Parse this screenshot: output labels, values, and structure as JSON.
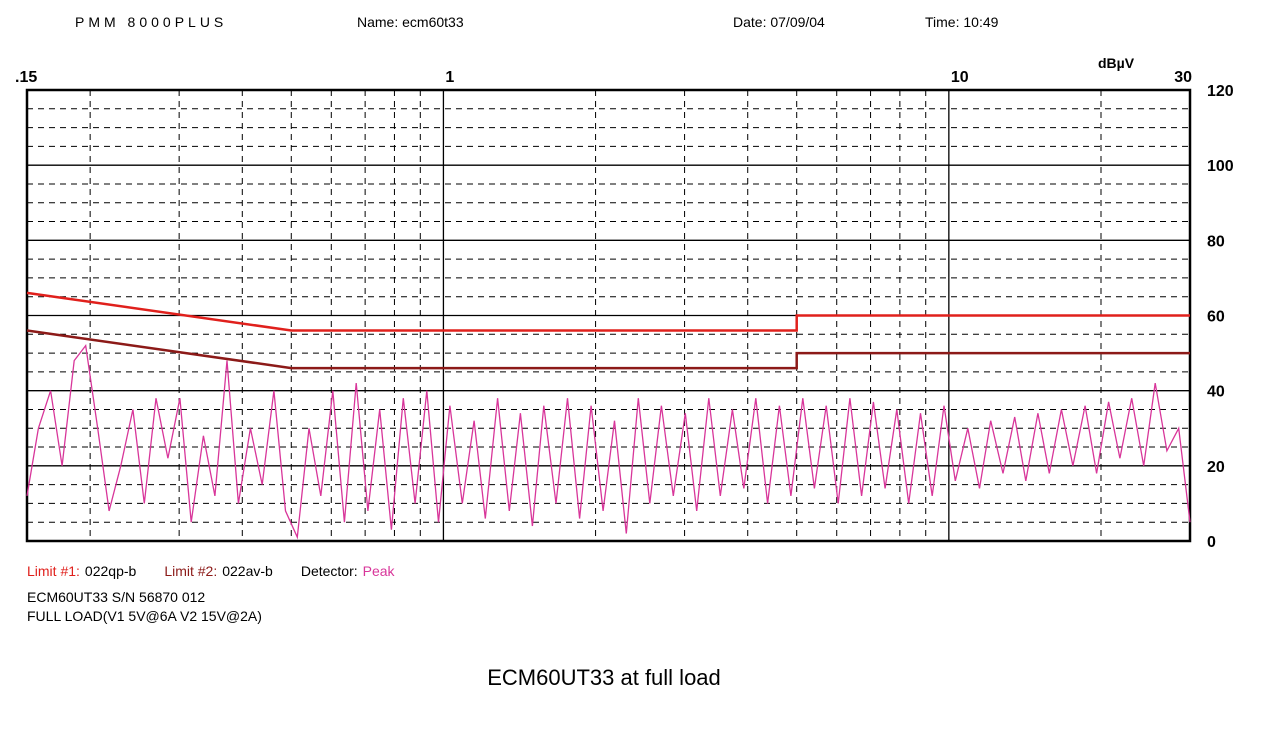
{
  "chart_data": {
    "type": "line",
    "header": {
      "instrument": "PMM 8000PLUS",
      "name": "Name: ecm60t33",
      "date": "Date: 07/09/04",
      "time": "Time: 10:49"
    },
    "y_unit": "dBµV",
    "log_x": true,
    "xlim": [
      0.15,
      30
    ],
    "ylim": [
      0,
      120
    ],
    "xticks": [
      {
        "value": 0.15,
        "label": ".15"
      },
      1,
      10,
      30
    ],
    "yticks": [
      0,
      20,
      40,
      60,
      80,
      100,
      120
    ],
    "xticks_minor": [
      0.2,
      0.3,
      0.4,
      0.5,
      0.6,
      0.7,
      0.8,
      0.9,
      2,
      3,
      4,
      5,
      6,
      7,
      8,
      9,
      20
    ],
    "yticks_minor": [
      5,
      10,
      15,
      25,
      30,
      35,
      45,
      50,
      55,
      65,
      70,
      75,
      85,
      90,
      95,
      105,
      110,
      115
    ],
    "grid": true,
    "legend_labels": [
      "Limit #1:",
      "Limit #2:",
      "Detector:"
    ],
    "series": [
      {
        "name": "022qp-b",
        "color": "#e0201c",
        "x": [
          0.15,
          0.5,
          5,
          5,
          30
        ],
        "values": [
          66,
          56,
          56,
          60,
          60
        ]
      },
      {
        "name": "022av-b",
        "color": "#8c1a18",
        "x": [
          0.15,
          0.5,
          5,
          5,
          30
        ],
        "values": [
          56,
          46,
          46,
          50,
          50
        ]
      },
      {
        "name": "Peak",
        "color": "#d8369a",
        "x": [
          0.15,
          0.158,
          0.167,
          0.176,
          0.186,
          0.196,
          0.207,
          0.218,
          0.23,
          0.243,
          0.256,
          0.27,
          0.285,
          0.301,
          0.317,
          0.335,
          0.353,
          0.373,
          0.393,
          0.415,
          0.438,
          0.462,
          0.487,
          0.514,
          0.542,
          0.572,
          0.604,
          0.637,
          0.672,
          0.709,
          0.748,
          0.789,
          0.833,
          0.879,
          0.927,
          0.978,
          1.03,
          1.09,
          1.15,
          1.21,
          1.28,
          1.35,
          1.42,
          1.5,
          1.58,
          1.67,
          1.76,
          1.86,
          1.96,
          2.07,
          2.18,
          2.3,
          2.43,
          2.56,
          2.7,
          2.85,
          3.01,
          3.17,
          3.35,
          3.53,
          3.73,
          3.93,
          4.15,
          4.38,
          4.62,
          4.87,
          5.14,
          5.42,
          5.72,
          6.04,
          6.37,
          6.72,
          7.09,
          7.48,
          7.89,
          8.33,
          8.79,
          9.27,
          9.78,
          10.3,
          10.9,
          11.5,
          12.1,
          12.8,
          13.5,
          14.2,
          15.0,
          15.8,
          16.7,
          17.6,
          18.6,
          19.6,
          20.7,
          21.8,
          23.0,
          24.3,
          25.6,
          27.0,
          28.5,
          30.0
        ],
        "values": [
          12,
          30,
          40,
          20,
          48,
          52,
          30,
          8,
          20,
          35,
          10,
          38,
          22,
          38,
          5,
          28,
          12,
          48,
          10,
          30,
          15,
          40,
          8,
          1,
          30,
          12,
          40,
          5,
          42,
          8,
          35,
          3,
          38,
          10,
          40,
          5,
          36,
          10,
          32,
          6,
          38,
          8,
          34,
          4,
          36,
          10,
          38,
          6,
          36,
          8,
          32,
          2,
          38,
          10,
          36,
          12,
          34,
          8,
          38,
          12,
          35,
          14,
          38,
          10,
          36,
          12,
          38,
          14,
          36,
          10,
          38,
          12,
          37,
          14,
          35,
          10,
          34,
          12,
          36,
          16,
          30,
          14,
          32,
          18,
          33,
          16,
          34,
          18,
          35,
          20,
          36,
          18,
          37,
          22,
          38,
          20,
          42,
          24,
          30,
          5
        ]
      }
    ],
    "notes": [
      "ECM60UT33  S/N 56870 012",
      "FULL LOAD(V1 5V@6A  V2 15V@2A)"
    ],
    "caption": "ECM60UT33 at full load"
  }
}
